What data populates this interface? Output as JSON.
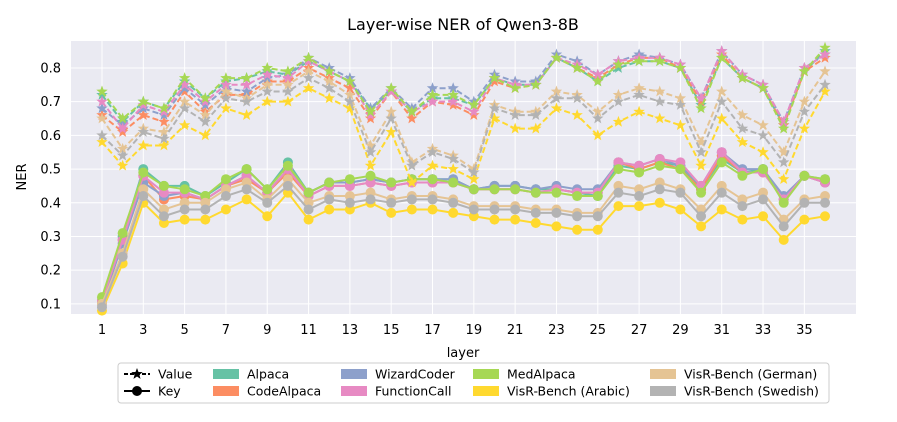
{
  "chart_data": {
    "type": "line",
    "title": "Layer-wise NER of Qwen3-8B",
    "xlabel": "layer",
    "ylabel": "NER",
    "x": [
      1,
      2,
      3,
      4,
      5,
      6,
      7,
      8,
      9,
      10,
      11,
      12,
      13,
      14,
      15,
      16,
      17,
      18,
      19,
      20,
      21,
      22,
      23,
      24,
      25,
      26,
      27,
      28,
      29,
      30,
      31,
      32,
      33,
      34,
      35,
      36
    ],
    "xticks": [
      1,
      3,
      5,
      7,
      9,
      11,
      13,
      15,
      17,
      19,
      21,
      23,
      25,
      27,
      29,
      31,
      33,
      35
    ],
    "xticks_labels": [
      "1",
      "3",
      "5",
      "7",
      "9",
      "11",
      "13",
      "15",
      "17",
      "19",
      "21",
      "23",
      "25",
      "27",
      "29",
      "31",
      "33",
      "35"
    ],
    "xlim": [
      -0.5,
      37.5
    ],
    "ylim": [
      0.07,
      0.88
    ],
    "yticks": [
      0.1,
      0.2,
      0.3,
      0.4,
      0.5,
      0.6,
      0.7,
      0.8
    ],
    "yticks_labels": [
      "0.1",
      "0.2",
      "0.3",
      "0.4",
      "0.5",
      "0.6",
      "0.7",
      "0.8"
    ],
    "grid": true,
    "legend": {
      "position": "bottom",
      "entries": [
        "Value",
        "Key",
        "Alpaca",
        "CodeAlpaca",
        "WizardCoder",
        "FunctionCall",
        "MedAlpaca",
        "VisR-Bench (Arabic)",
        "VisR-Bench (German)",
        "VisR-Bench (Swedish)"
      ],
      "style_entries": [
        {
          "label": "Value",
          "marker": "star"
        },
        {
          "label": "Key",
          "marker": "circle"
        }
      ]
    },
    "series": [
      {
        "name": "Alpaca",
        "color": "#66c2a5",
        "value": [
          0.72,
          0.64,
          0.7,
          0.68,
          0.76,
          0.71,
          0.76,
          0.77,
          0.79,
          0.78,
          0.82,
          0.79,
          0.76,
          0.68,
          0.73,
          0.67,
          0.71,
          0.71,
          0.69,
          0.77,
          0.75,
          0.75,
          0.83,
          0.8,
          0.76,
          0.8,
          0.82,
          0.82,
          0.8,
          0.69,
          0.83,
          0.77,
          0.74,
          0.63,
          0.79,
          0.85
        ],
        "key": [
          0.11,
          0.3,
          0.5,
          0.45,
          0.45,
          0.42,
          0.46,
          0.5,
          0.44,
          0.52,
          0.43,
          0.46,
          0.46,
          0.47,
          0.46,
          0.47,
          0.47,
          0.47,
          0.44,
          0.45,
          0.45,
          0.44,
          0.44,
          0.43,
          0.42,
          0.51,
          0.5,
          0.52,
          0.51,
          0.44,
          0.53,
          0.49,
          0.5,
          0.41,
          0.48,
          0.47
        ]
      },
      {
        "name": "CodeAlpaca",
        "color": "#fc8d62",
        "value": [
          0.66,
          0.61,
          0.66,
          0.64,
          0.73,
          0.67,
          0.72,
          0.72,
          0.76,
          0.76,
          0.8,
          0.77,
          0.74,
          0.65,
          0.73,
          0.65,
          0.7,
          0.69,
          0.66,
          0.76,
          0.74,
          0.75,
          0.83,
          0.8,
          0.77,
          0.81,
          0.83,
          0.83,
          0.8,
          0.7,
          0.84,
          0.77,
          0.74,
          0.63,
          0.79,
          0.83
        ],
        "key": [
          0.11,
          0.29,
          0.48,
          0.41,
          0.42,
          0.41,
          0.45,
          0.47,
          0.43,
          0.49,
          0.42,
          0.45,
          0.45,
          0.46,
          0.45,
          0.46,
          0.46,
          0.46,
          0.44,
          0.44,
          0.44,
          0.43,
          0.44,
          0.43,
          0.43,
          0.52,
          0.5,
          0.52,
          0.5,
          0.44,
          0.54,
          0.49,
          0.49,
          0.41,
          0.48,
          0.46
        ]
      },
      {
        "name": "WizardCoder",
        "color": "#8da0cb",
        "value": [
          0.68,
          0.63,
          0.68,
          0.66,
          0.74,
          0.69,
          0.74,
          0.73,
          0.77,
          0.78,
          0.83,
          0.8,
          0.77,
          0.68,
          0.74,
          0.68,
          0.74,
          0.74,
          0.7,
          0.78,
          0.76,
          0.76,
          0.84,
          0.82,
          0.78,
          0.82,
          0.84,
          0.83,
          0.81,
          0.71,
          0.85,
          0.78,
          0.75,
          0.64,
          0.8,
          0.84
        ],
        "key": [
          0.1,
          0.28,
          0.46,
          0.42,
          0.43,
          0.41,
          0.45,
          0.48,
          0.43,
          0.5,
          0.43,
          0.46,
          0.46,
          0.47,
          0.46,
          0.47,
          0.47,
          0.47,
          0.44,
          0.45,
          0.45,
          0.44,
          0.45,
          0.44,
          0.44,
          0.52,
          0.51,
          0.53,
          0.51,
          0.45,
          0.55,
          0.5,
          0.5,
          0.42,
          0.48,
          0.46
        ]
      },
      {
        "name": "FunctionCall",
        "color": "#e78ac3",
        "value": [
          0.7,
          0.62,
          0.69,
          0.67,
          0.75,
          0.7,
          0.75,
          0.75,
          0.78,
          0.77,
          0.82,
          0.79,
          0.76,
          0.66,
          0.73,
          0.67,
          0.7,
          0.7,
          0.67,
          0.77,
          0.75,
          0.75,
          0.83,
          0.81,
          0.78,
          0.82,
          0.83,
          0.83,
          0.81,
          0.71,
          0.85,
          0.78,
          0.75,
          0.64,
          0.8,
          0.84
        ],
        "key": [
          0.11,
          0.29,
          0.48,
          0.43,
          0.43,
          0.41,
          0.45,
          0.48,
          0.43,
          0.5,
          0.42,
          0.45,
          0.45,
          0.46,
          0.45,
          0.46,
          0.46,
          0.46,
          0.44,
          0.44,
          0.44,
          0.43,
          0.44,
          0.43,
          0.43,
          0.52,
          0.51,
          0.53,
          0.52,
          0.45,
          0.55,
          0.49,
          0.49,
          0.41,
          0.48,
          0.46
        ]
      },
      {
        "name": "MedAlpaca",
        "color": "#a6d854",
        "value": [
          0.73,
          0.65,
          0.7,
          0.68,
          0.77,
          0.71,
          0.77,
          0.77,
          0.8,
          0.79,
          0.83,
          0.79,
          0.76,
          0.67,
          0.74,
          0.67,
          0.72,
          0.72,
          0.69,
          0.77,
          0.74,
          0.75,
          0.83,
          0.8,
          0.76,
          0.81,
          0.82,
          0.82,
          0.8,
          0.68,
          0.83,
          0.77,
          0.74,
          0.62,
          0.79,
          0.86
        ],
        "key": [
          0.12,
          0.31,
          0.49,
          0.45,
          0.44,
          0.42,
          0.47,
          0.5,
          0.44,
          0.51,
          0.43,
          0.46,
          0.47,
          0.48,
          0.46,
          0.47,
          0.47,
          0.46,
          0.44,
          0.44,
          0.44,
          0.43,
          0.43,
          0.42,
          0.42,
          0.5,
          0.49,
          0.51,
          0.5,
          0.43,
          0.52,
          0.48,
          0.5,
          0.4,
          0.48,
          0.47
        ]
      },
      {
        "name": "VisR-Bench (Arabic)",
        "color": "#ffd92f",
        "value": [
          0.58,
          0.51,
          0.57,
          0.57,
          0.63,
          0.6,
          0.68,
          0.66,
          0.7,
          0.7,
          0.74,
          0.71,
          0.68,
          0.51,
          0.61,
          0.46,
          0.51,
          0.5,
          0.47,
          0.65,
          0.62,
          0.62,
          0.68,
          0.66,
          0.6,
          0.64,
          0.67,
          0.65,
          0.63,
          0.51,
          0.65,
          0.58,
          0.55,
          0.47,
          0.62,
          0.73
        ],
        "key": [
          0.08,
          0.22,
          0.4,
          0.34,
          0.35,
          0.35,
          0.38,
          0.41,
          0.36,
          0.43,
          0.35,
          0.38,
          0.38,
          0.4,
          0.37,
          0.38,
          0.38,
          0.37,
          0.36,
          0.35,
          0.35,
          0.34,
          0.33,
          0.32,
          0.32,
          0.39,
          0.39,
          0.4,
          0.38,
          0.33,
          0.38,
          0.35,
          0.36,
          0.29,
          0.35,
          0.36
        ]
      },
      {
        "name": "VisR-Bench (German)",
        "color": "#e5c494",
        "value": [
          0.65,
          0.56,
          0.62,
          0.61,
          0.7,
          0.66,
          0.73,
          0.71,
          0.75,
          0.75,
          0.79,
          0.76,
          0.72,
          0.57,
          0.67,
          0.52,
          0.56,
          0.54,
          0.5,
          0.69,
          0.67,
          0.67,
          0.73,
          0.72,
          0.67,
          0.72,
          0.74,
          0.73,
          0.71,
          0.58,
          0.73,
          0.66,
          0.63,
          0.55,
          0.7,
          0.79
        ],
        "key": [
          0.1,
          0.25,
          0.44,
          0.38,
          0.4,
          0.4,
          0.44,
          0.46,
          0.41,
          0.47,
          0.4,
          0.42,
          0.42,
          0.43,
          0.41,
          0.42,
          0.42,
          0.41,
          0.39,
          0.39,
          0.39,
          0.38,
          0.38,
          0.37,
          0.37,
          0.45,
          0.44,
          0.46,
          0.44,
          0.38,
          0.45,
          0.41,
          0.43,
          0.35,
          0.41,
          0.42
        ]
      },
      {
        "name": "VisR-Bench (Swedish)",
        "color": "#b3b3b3",
        "value": [
          0.6,
          0.54,
          0.61,
          0.59,
          0.68,
          0.64,
          0.71,
          0.7,
          0.73,
          0.73,
          0.77,
          0.74,
          0.7,
          0.55,
          0.65,
          0.51,
          0.55,
          0.53,
          0.49,
          0.68,
          0.66,
          0.66,
          0.71,
          0.71,
          0.65,
          0.7,
          0.72,
          0.7,
          0.69,
          0.55,
          0.7,
          0.62,
          0.6,
          0.52,
          0.67,
          0.75
        ],
        "key": [
          0.09,
          0.24,
          0.42,
          0.36,
          0.38,
          0.38,
          0.42,
          0.44,
          0.4,
          0.45,
          0.38,
          0.41,
          0.4,
          0.41,
          0.4,
          0.41,
          0.41,
          0.4,
          0.38,
          0.38,
          0.38,
          0.37,
          0.37,
          0.36,
          0.36,
          0.43,
          0.42,
          0.44,
          0.43,
          0.36,
          0.43,
          0.39,
          0.41,
          0.33,
          0.4,
          0.4
        ]
      }
    ]
  }
}
